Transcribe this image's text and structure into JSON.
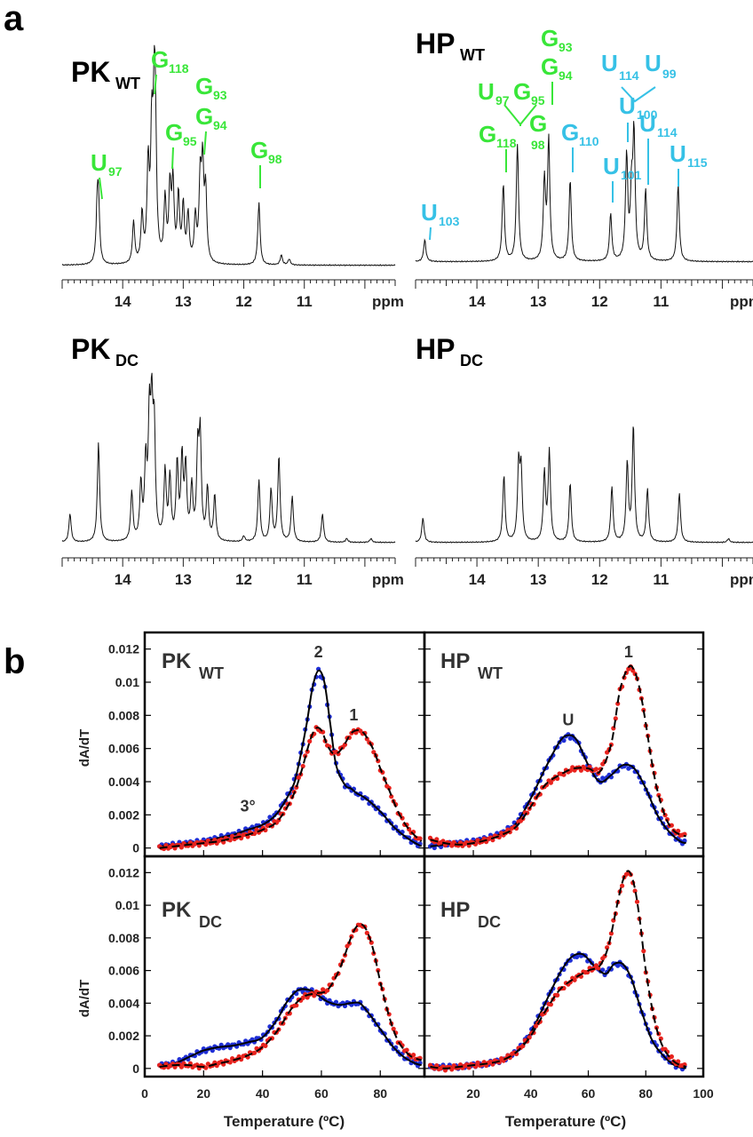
{
  "panel_labels": {
    "a": "a",
    "b": "b"
  },
  "colors": {
    "green": "#39e639",
    "cyan": "#36c1e6",
    "blue": "#1f2fd6",
    "red": "#e8231e",
    "fit": "#000000"
  },
  "nmr": {
    "x_unit": "ppm",
    "x_ticks": [
      "14",
      "13",
      "12",
      "11"
    ],
    "spectra": [
      {
        "key": "pk_wt",
        "title": "PK",
        "subscript": "WT",
        "xlim": [
          15.0,
          9.5
        ],
        "peaks": [
          [
            14.42,
            0.5
          ],
          [
            14.4,
            0.55
          ],
          [
            13.82,
            0.42
          ],
          [
            13.68,
            0.48
          ],
          [
            13.58,
            0.95
          ],
          [
            13.52,
            1.2
          ],
          [
            13.48,
            1.25
          ],
          [
            13.46,
            1.08
          ],
          [
            13.3,
            0.62
          ],
          [
            13.22,
            0.72
          ],
          [
            13.17,
            0.78
          ],
          [
            13.08,
            0.66
          ],
          [
            13.0,
            0.56
          ],
          [
            12.92,
            0.48
          ],
          [
            12.8,
            0.45
          ],
          [
            12.72,
            0.8
          ],
          [
            12.68,
            0.92
          ],
          [
            12.63,
            0.7
          ],
          [
            11.75,
            0.63
          ],
          [
            11.38,
            0.1
          ],
          [
            11.25,
            0.06
          ]
        ]
      },
      {
        "key": "hp_wt",
        "title": "HP",
        "subscript": "WT",
        "xlim": [
          15.0,
          9.5
        ],
        "peaks": [
          [
            14.85,
            0.22
          ],
          [
            13.57,
            0.78
          ],
          [
            13.34,
            1.18
          ],
          [
            12.9,
            0.8
          ],
          [
            12.83,
            1.22
          ],
          [
            12.48,
            0.82
          ],
          [
            11.82,
            0.48
          ],
          [
            11.56,
            1.05
          ],
          [
            11.48,
            0.62
          ],
          [
            11.44,
            1.25
          ],
          [
            11.25,
            0.72
          ],
          [
            10.72,
            0.78
          ]
        ]
      },
      {
        "key": "pk_dc",
        "title": "PK",
        "subscript": "DC",
        "xlim": [
          15.0,
          9.5
        ],
        "peaks": [
          [
            14.87,
            0.3
          ],
          [
            14.4,
            1.05
          ],
          [
            13.85,
            0.52
          ],
          [
            13.7,
            0.58
          ],
          [
            13.62,
            0.78
          ],
          [
            13.56,
            1.18
          ],
          [
            13.52,
            1.22
          ],
          [
            13.48,
            1.1
          ],
          [
            13.3,
            0.72
          ],
          [
            13.22,
            0.65
          ],
          [
            13.1,
            0.8
          ],
          [
            13.02,
            0.85
          ],
          [
            12.96,
            0.75
          ],
          [
            12.86,
            0.55
          ],
          [
            12.76,
            0.9
          ],
          [
            12.72,
            1.05
          ],
          [
            12.6,
            0.55
          ],
          [
            12.48,
            0.48
          ],
          [
            12.0,
            0.06
          ],
          [
            11.75,
            0.65
          ],
          [
            11.55,
            0.55
          ],
          [
            11.42,
            0.9
          ],
          [
            11.2,
            0.48
          ],
          [
            10.7,
            0.3
          ],
          [
            10.3,
            0.04
          ],
          [
            9.9,
            0.04
          ]
        ]
      },
      {
        "key": "hp_dc",
        "title": "HP",
        "subscript": "DC",
        "xlim": [
          15.0,
          9.5
        ],
        "peaks": [
          [
            14.88,
            0.26
          ],
          [
            13.56,
            0.7
          ],
          [
            13.32,
            0.78
          ],
          [
            13.28,
            0.72
          ],
          [
            12.9,
            0.72
          ],
          [
            12.82,
            0.95
          ],
          [
            12.48,
            0.62
          ],
          [
            11.8,
            0.58
          ],
          [
            11.55,
            0.82
          ],
          [
            11.45,
            1.22
          ],
          [
            11.22,
            0.56
          ],
          [
            10.7,
            0.52
          ],
          [
            9.9,
            0.04
          ]
        ]
      }
    ],
    "annotations_pk_wt": [
      {
        "base": "U",
        "sub": "97",
        "color": "green"
      },
      {
        "base": "G",
        "sub": "118",
        "color": "green"
      },
      {
        "base": "G",
        "sub": "93",
        "color": "green"
      },
      {
        "base": "G",
        "sub": "94",
        "color": "green"
      },
      {
        "base": "G",
        "sub": "95",
        "color": "green"
      },
      {
        "base": "G",
        "sub": "98",
        "color": "green"
      }
    ],
    "annotations_hp_wt": [
      {
        "base": "U",
        "sub": "103",
        "color": "cyan"
      },
      {
        "base": "G",
        "sub": "118",
        "color": "green"
      },
      {
        "base": "U",
        "sub": "97",
        "color": "green"
      },
      {
        "base": "G",
        "sub": "95",
        "color": "green"
      },
      {
        "base": "G",
        "sub": "98",
        "color": "green"
      },
      {
        "base": "G",
        "sub": "93",
        "color": "green"
      },
      {
        "base": "G",
        "sub": "94",
        "color": "green"
      },
      {
        "base": "G",
        "sub": "110",
        "color": "cyan"
      },
      {
        "base": "U",
        "sub": "101",
        "color": "cyan"
      },
      {
        "base": "U",
        "sub": "100",
        "color": "cyan"
      },
      {
        "base": "U",
        "sub": "114",
        "color": "cyan"
      },
      {
        "base": "U",
        "sub": "99",
        "color": "cyan"
      },
      {
        "base": "U",
        "sub": "114",
        "color": "cyan"
      },
      {
        "base": "U",
        "sub": "115",
        "color": "cyan"
      }
    ]
  },
  "chart_data": [
    {
      "type": "line",
      "key": "pk_wt",
      "title": "PK",
      "subscript": "WT",
      "ylabel": "dA/dT",
      "xlim": [
        0,
        95
      ],
      "ylim": [
        -0.0005,
        0.013
      ],
      "y_ticks": [
        "0",
        "0.002",
        "0.004",
        "0.006",
        "0.008",
        "0.01",
        "0.012"
      ],
      "annotations": [
        {
          "text": "2",
          "x": 59,
          "y": 0.0115
        },
        {
          "text": "1",
          "x": 71,
          "y": 0.0077
        },
        {
          "text": "3°",
          "x": 35,
          "y": 0.0022
        }
      ],
      "series": [
        {
          "name": "blue",
          "color": "blue",
          "x": [
            5,
            10,
            15,
            20,
            25,
            30,
            35,
            40,
            45,
            50,
            52,
            55,
            57,
            59,
            61,
            63,
            65,
            68,
            70,
            72,
            75,
            80,
            85,
            90,
            94
          ],
          "y": [
            0.0001,
            0.0002,
            0.0003,
            0.0004,
            0.0006,
            0.0008,
            0.0011,
            0.0014,
            0.0021,
            0.0036,
            0.0048,
            0.0075,
            0.0097,
            0.0107,
            0.01,
            0.0075,
            0.005,
            0.0038,
            0.0036,
            0.0033,
            0.003,
            0.0022,
            0.0012,
            0.0005,
            0.0001
          ]
        },
        {
          "name": "red",
          "color": "red",
          "x": [
            5,
            10,
            15,
            20,
            25,
            30,
            35,
            40,
            45,
            50,
            53,
            56,
            58,
            60,
            62,
            64,
            66,
            68,
            70,
            72,
            74,
            76,
            78,
            80,
            83,
            86,
            89,
            92,
            94
          ],
          "y": [
            0.0,
            0.0001,
            0.0002,
            0.0003,
            0.0004,
            0.0006,
            0.0008,
            0.0011,
            0.0016,
            0.003,
            0.0045,
            0.0064,
            0.0072,
            0.0071,
            0.0062,
            0.0057,
            0.0058,
            0.0063,
            0.0069,
            0.0071,
            0.007,
            0.0065,
            0.0058,
            0.0048,
            0.0035,
            0.0022,
            0.0013,
            0.0007,
            0.0004
          ]
        }
      ]
    },
    {
      "type": "line",
      "key": "hp_wt",
      "title": "HP",
      "subscript": "WT",
      "ylabel": "",
      "xlim": [
        3,
        100
      ],
      "ylim": [
        -0.0005,
        0.013
      ],
      "annotations": [
        {
          "text": "U",
          "x": 53,
          "y": 0.0074
        },
        {
          "text": "1",
          "x": 74,
          "y": 0.0115
        }
      ],
      "series": [
        {
          "name": "blue",
          "color": "blue",
          "x": [
            5,
            10,
            15,
            20,
            25,
            30,
            35,
            40,
            45,
            50,
            53,
            56,
            60,
            64,
            68,
            72,
            76,
            80,
            84,
            88,
            92,
            94
          ],
          "y": [
            0.0001,
            0.0002,
            0.0003,
            0.0004,
            0.0006,
            0.0009,
            0.0015,
            0.003,
            0.0048,
            0.0064,
            0.0068,
            0.0065,
            0.005,
            0.004,
            0.0044,
            0.005,
            0.0048,
            0.0036,
            0.002,
            0.001,
            0.0004,
            0.0003
          ]
        },
        {
          "name": "red",
          "color": "red",
          "x": [
            5,
            10,
            15,
            20,
            25,
            30,
            35,
            40,
            45,
            50,
            55,
            60,
            64,
            68,
            71,
            74,
            76,
            78,
            80,
            82,
            84,
            87,
            90,
            94
          ],
          "y": [
            0.0005,
            0.0003,
            0.0002,
            0.0003,
            0.0005,
            0.0008,
            0.0013,
            0.0025,
            0.0038,
            0.0044,
            0.0048,
            0.0048,
            0.0046,
            0.0063,
            0.0095,
            0.0109,
            0.0107,
            0.0095,
            0.0075,
            0.0053,
            0.0035,
            0.0018,
            0.001,
            0.0007
          ]
        }
      ]
    },
    {
      "type": "line",
      "key": "pk_dc",
      "title": "PK",
      "subscript": "DC",
      "ylabel": "dA/dT",
      "xlim": [
        0,
        95
      ],
      "ylim": [
        -0.0005,
        0.013
      ],
      "y_ticks": [
        "0",
        "0.002",
        "0.004",
        "0.006",
        "0.008",
        "0.01",
        "0.012"
      ],
      "x_ticks": [
        "0",
        "20",
        "40",
        "60",
        "80"
      ],
      "xlabel": "Temperature (ºC)",
      "annotations": [],
      "series": [
        {
          "name": "blue",
          "color": "blue",
          "x": [
            5,
            10,
            15,
            20,
            25,
            30,
            35,
            40,
            45,
            48,
            52,
            56,
            58,
            62,
            66,
            70,
            73,
            76,
            80,
            84,
            88,
            92,
            94
          ],
          "y": [
            0.0002,
            0.0003,
            0.0007,
            0.0011,
            0.0013,
            0.0014,
            0.0016,
            0.0019,
            0.003,
            0.004,
            0.0048,
            0.0048,
            0.0046,
            0.0041,
            0.0039,
            0.004,
            0.004,
            0.0034,
            0.0024,
            0.0014,
            0.0007,
            0.0003,
            0.0002
          ]
        },
        {
          "name": "red",
          "color": "red",
          "x": [
            5,
            10,
            15,
            20,
            25,
            30,
            35,
            40,
            45,
            50,
            54,
            58,
            62,
            66,
            70,
            72,
            74,
            76,
            78,
            80,
            83,
            86,
            90,
            94
          ],
          "y": [
            0.0001,
            0.0002,
            0.0002,
            0.0001,
            0.0003,
            0.0005,
            0.0008,
            0.0013,
            0.0023,
            0.0037,
            0.0044,
            0.0046,
            0.0048,
            0.006,
            0.008,
            0.0087,
            0.0088,
            0.0082,
            0.007,
            0.0053,
            0.0032,
            0.0017,
            0.0008,
            0.0005
          ]
        }
      ]
    },
    {
      "type": "line",
      "key": "hp_dc",
      "title": "HP",
      "subscript": "DC",
      "ylabel": "",
      "xlim": [
        3,
        100
      ],
      "ylim": [
        -0.0005,
        0.013
      ],
      "x_ticks": [
        "20",
        "40",
        "60",
        "80",
        "100"
      ],
      "xlabel": "Temperature (ºC)",
      "annotations": [],
      "series": [
        {
          "name": "blue",
          "color": "blue",
          "x": [
            5,
            10,
            15,
            20,
            25,
            30,
            35,
            40,
            45,
            50,
            54,
            58,
            62,
            66,
            69,
            72,
            75,
            78,
            82,
            86,
            90,
            94
          ],
          "y": [
            0.0001,
            0.0001,
            0.0001,
            0.0002,
            0.0003,
            0.0005,
            0.001,
            0.0022,
            0.004,
            0.0058,
            0.0068,
            0.007,
            0.0063,
            0.0058,
            0.0064,
            0.0064,
            0.0055,
            0.0038,
            0.0018,
            0.0008,
            0.0002,
            0.0
          ]
        },
        {
          "name": "red",
          "color": "red",
          "x": [
            5,
            10,
            15,
            20,
            25,
            30,
            35,
            40,
            45,
            50,
            55,
            60,
            64,
            67,
            70,
            72,
            74,
            76,
            78,
            80,
            83,
            86,
            90,
            94
          ],
          "y": [
            0.0001,
            0.0,
            0.0001,
            0.0002,
            0.0003,
            0.0005,
            0.001,
            0.002,
            0.0035,
            0.0048,
            0.0055,
            0.006,
            0.0063,
            0.0075,
            0.01,
            0.0115,
            0.0121,
            0.0112,
            0.009,
            0.006,
            0.003,
            0.0013,
            0.0004,
            0.0001
          ]
        }
      ]
    }
  ]
}
